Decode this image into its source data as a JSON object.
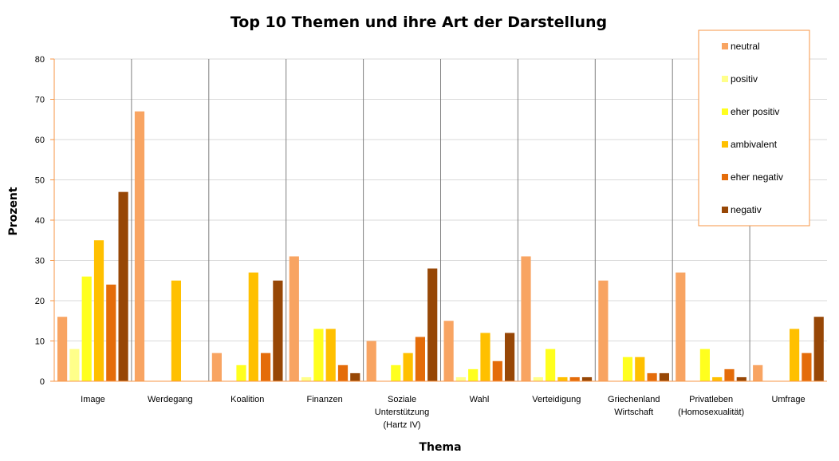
{
  "chart_data": {
    "type": "bar",
    "title": "Top 10 Themen und ihre Art der Darstellung",
    "xlabel": "Thema",
    "ylabel": "Prozent",
    "ylim": [
      0,
      80
    ],
    "yticks": [
      0,
      10,
      20,
      30,
      40,
      50,
      60,
      70,
      80
    ],
    "grid": true,
    "legend_position": "top-right",
    "categories": [
      [
        "Image"
      ],
      [
        "Werdegang"
      ],
      [
        "Koalition"
      ],
      [
        "Finanzen"
      ],
      [
        "Soziale",
        "Unterstützung",
        "(Hartz IV)"
      ],
      [
        "Wahl"
      ],
      [
        "Verteidigung"
      ],
      [
        "Griechenland",
        "Wirtschaft"
      ],
      [
        "Privatleben",
        "(Homosexualität)"
      ],
      [
        "Umfrage"
      ]
    ],
    "series": [
      {
        "name": "neutral",
        "color": "#F8A462",
        "values": [
          16,
          67,
          7,
          31,
          10,
          15,
          31,
          25,
          27,
          4
        ]
      },
      {
        "name": "positiv",
        "color": "#FFFF8A",
        "values": [
          8,
          0,
          0,
          1,
          0,
          1,
          1,
          0,
          0,
          0
        ]
      },
      {
        "name": "eher positiv",
        "color": "#FFFF1E",
        "values": [
          26,
          0,
          4,
          13,
          4,
          3,
          8,
          6,
          8,
          0
        ]
      },
      {
        "name": "ambivalent",
        "color": "#FFC000",
        "values": [
          35,
          25,
          27,
          13,
          7,
          12,
          1,
          6,
          1,
          13
        ]
      },
      {
        "name": "eher negativ",
        "color": "#E46C0A",
        "values": [
          24,
          0,
          7,
          4,
          11,
          5,
          1,
          2,
          3,
          7
        ]
      },
      {
        "name": "negativ",
        "color": "#974706",
        "values": [
          47,
          0,
          25,
          2,
          28,
          12,
          1,
          2,
          1,
          16
        ]
      }
    ]
  }
}
